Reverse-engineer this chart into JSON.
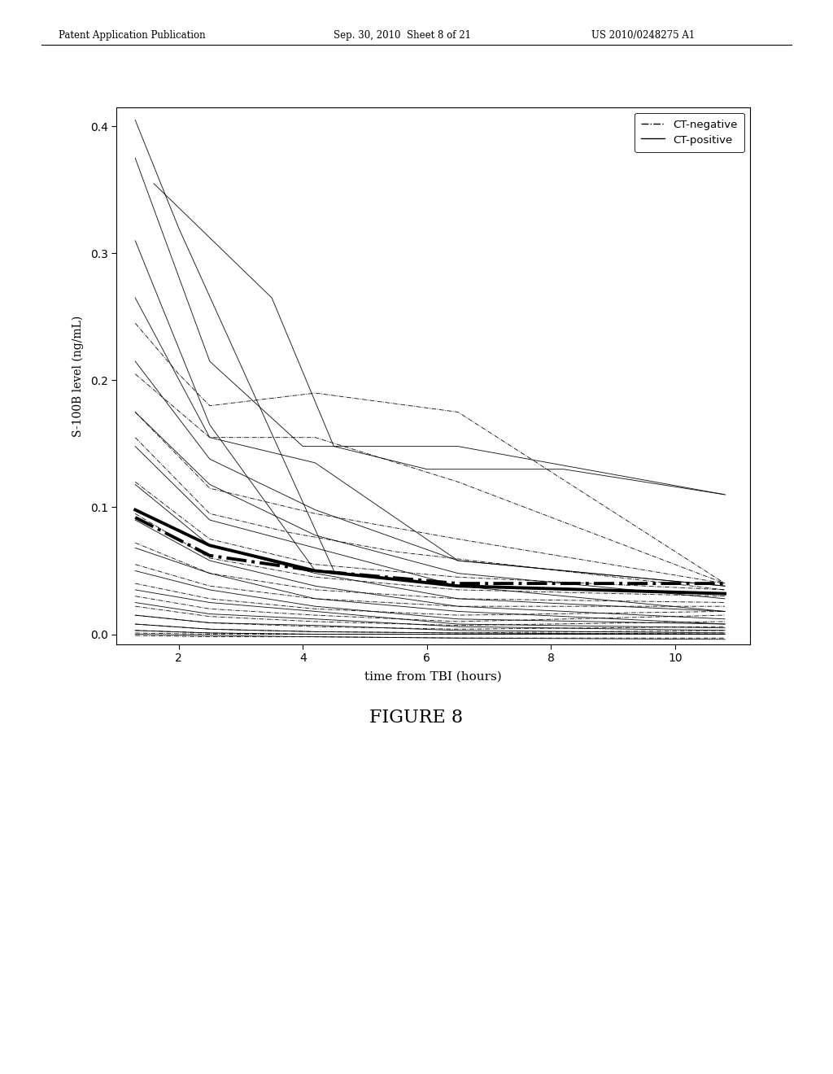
{
  "header_left": "Patent Application Publication",
  "header_mid": "Sep. 30, 2010  Sheet 8 of 21",
  "header_right": "US 2010/0248275 A1",
  "figure_label": "FIGURE 8",
  "xlabel": "time from TBI (hours)",
  "ylabel": "S-100B level (ng/mL)",
  "xlim": [
    1,
    11.2
  ],
  "ylim": [
    -0.008,
    0.415
  ],
  "xticks": [
    2,
    4,
    6,
    8,
    10
  ],
  "yticks": [
    0.0,
    0.1,
    0.2,
    0.3,
    0.4
  ],
  "ct_negative_lines": [
    {
      "x": [
        1.3,
        2.0,
        2.5,
        4.2,
        6.5,
        10.8
      ],
      "y": [
        0.245,
        0.205,
        0.18,
        0.19,
        0.175,
        0.04
      ]
    },
    {
      "x": [
        1.3,
        2.5,
        4.2,
        6.5,
        10.8
      ],
      "y": [
        0.205,
        0.155,
        0.155,
        0.12,
        0.04
      ]
    },
    {
      "x": [
        1.3,
        2.5,
        4.2,
        6.5,
        10.8
      ],
      "y": [
        0.175,
        0.115,
        0.095,
        0.075,
        0.04
      ]
    },
    {
      "x": [
        1.3,
        2.5,
        3.8,
        5.5,
        10.8
      ],
      "y": [
        0.155,
        0.095,
        0.08,
        0.065,
        0.035
      ]
    },
    {
      "x": [
        1.3,
        2.5,
        4.2,
        6.5,
        10.8
      ],
      "y": [
        0.12,
        0.075,
        0.055,
        0.045,
        0.035
      ]
    },
    {
      "x": [
        1.3,
        2.5,
        4.2,
        6.5,
        10.8
      ],
      "y": [
        0.095,
        0.06,
        0.045,
        0.035,
        0.03
      ]
    },
    {
      "x": [
        1.3,
        2.5,
        4.2,
        6.5,
        10.8
      ],
      "y": [
        0.072,
        0.048,
        0.035,
        0.028,
        0.025
      ]
    },
    {
      "x": [
        1.3,
        2.5,
        4.2,
        6.5,
        10.8
      ],
      "y": [
        0.055,
        0.038,
        0.028,
        0.022,
        0.022
      ]
    },
    {
      "x": [
        1.3,
        2.5,
        4.2,
        6.5,
        10.8
      ],
      "y": [
        0.04,
        0.028,
        0.02,
        0.015,
        0.018
      ]
    },
    {
      "x": [
        1.3,
        2.5,
        4.2,
        6.5,
        10.8
      ],
      "y": [
        0.03,
        0.02,
        0.015,
        0.01,
        0.015
      ]
    },
    {
      "x": [
        1.3,
        2.5,
        4.2,
        6.5,
        10.8
      ],
      "y": [
        0.022,
        0.014,
        0.01,
        0.007,
        0.01
      ]
    },
    {
      "x": [
        1.3,
        2.5,
        4.2,
        6.5,
        10.8
      ],
      "y": [
        0.015,
        0.009,
        0.006,
        0.004,
        0.006
      ]
    },
    {
      "x": [
        1.3,
        2.5,
        4.2,
        6.5,
        10.8
      ],
      "y": [
        0.008,
        0.004,
        0.002,
        0.001,
        0.003
      ]
    },
    {
      "x": [
        1.3,
        2.5,
        4.2,
        6.5,
        10.8
      ],
      "y": [
        0.003,
        0.001,
        0.0,
        0.0,
        0.001
      ]
    },
    {
      "x": [
        1.3,
        2.5,
        4.2,
        6.5,
        10.8
      ],
      "y": [
        0.001,
        0.0,
        0.0,
        0.0,
        0.0
      ]
    },
    {
      "x": [
        1.3,
        2.5,
        4.2,
        6.5,
        10.8
      ],
      "y": [
        -0.001,
        -0.002,
        -0.002,
        -0.003,
        -0.003
      ]
    }
  ],
  "ct_negative_mean": {
    "x": [
      1.3,
      2.5,
      4.2,
      6.5,
      10.8
    ],
    "y": [
      0.092,
      0.062,
      0.05,
      0.04,
      0.04
    ]
  },
  "ct_positive_lines": [
    {
      "x": [
        1.3,
        2.0,
        4.5
      ],
      "y": [
        0.405,
        0.32,
        0.05
      ]
    },
    {
      "x": [
        1.3,
        2.5,
        4.0,
        6.5,
        10.8
      ],
      "y": [
        0.375,
        0.215,
        0.148,
        0.148,
        0.11
      ]
    },
    {
      "x": [
        1.6,
        3.5,
        4.5,
        6.0,
        8.2,
        10.8
      ],
      "y": [
        0.355,
        0.265,
        0.148,
        0.13,
        0.13,
        0.11
      ]
    },
    {
      "x": [
        1.3,
        2.5,
        4.2
      ],
      "y": [
        0.31,
        0.165,
        0.05
      ]
    },
    {
      "x": [
        1.3,
        2.5,
        4.2,
        6.5,
        10.8
      ],
      "y": [
        0.265,
        0.155,
        0.135,
        0.058,
        0.038
      ]
    },
    {
      "x": [
        1.3,
        2.5,
        4.2,
        6.5,
        10.8
      ],
      "y": [
        0.215,
        0.138,
        0.098,
        0.058,
        0.038
      ]
    },
    {
      "x": [
        1.3,
        2.5,
        4.2,
        6.5,
        10.8
      ],
      "y": [
        0.175,
        0.118,
        0.078,
        0.048,
        0.028
      ]
    },
    {
      "x": [
        1.3,
        2.5,
        4.2,
        6.5,
        10.8
      ],
      "y": [
        0.148,
        0.09,
        0.068,
        0.038,
        0.018
      ]
    },
    {
      "x": [
        1.3,
        2.5,
        4.2,
        6.5,
        10.8
      ],
      "y": [
        0.118,
        0.07,
        0.048,
        0.028,
        0.018
      ]
    },
    {
      "x": [
        1.3,
        2.5,
        4.2,
        6.5,
        10.8
      ],
      "y": [
        0.09,
        0.058,
        0.038,
        0.022,
        0.012
      ]
    },
    {
      "x": [
        1.3,
        2.5,
        4.2,
        6.5,
        10.8
      ],
      "y": [
        0.068,
        0.048,
        0.028,
        0.018,
        0.008
      ]
    },
    {
      "x": [
        1.3,
        2.5,
        4.2,
        6.5,
        10.8
      ],
      "y": [
        0.05,
        0.035,
        0.022,
        0.012,
        0.008
      ]
    },
    {
      "x": [
        1.3,
        2.5,
        4.2,
        6.5,
        10.8
      ],
      "y": [
        0.035,
        0.025,
        0.018,
        0.008,
        0.005
      ]
    },
    {
      "x": [
        1.3,
        2.5,
        4.2,
        6.5,
        10.8
      ],
      "y": [
        0.025,
        0.016,
        0.012,
        0.006,
        0.003
      ]
    },
    {
      "x": [
        1.3,
        2.5,
        4.2,
        6.5,
        10.8
      ],
      "y": [
        0.015,
        0.009,
        0.007,
        0.003,
        0.001
      ]
    },
    {
      "x": [
        1.3,
        2.5,
        4.2,
        6.5,
        10.8
      ],
      "y": [
        0.008,
        0.004,
        0.002,
        0.001,
        0.0
      ]
    },
    {
      "x": [
        1.3,
        2.5,
        4.2,
        6.5,
        10.8
      ],
      "y": [
        0.003,
        0.001,
        0.0,
        0.0,
        0.0
      ]
    },
    {
      "x": [
        1.3,
        2.5,
        4.2,
        6.5,
        10.8
      ],
      "y": [
        0.0,
        -0.001,
        -0.002,
        -0.003,
        -0.004
      ]
    }
  ],
  "ct_positive_mean": {
    "x": [
      1.3,
      2.5,
      4.2,
      6.5,
      10.8
    ],
    "y": [
      0.098,
      0.07,
      0.05,
      0.038,
      0.032
    ]
  },
  "background_color": "#ffffff"
}
